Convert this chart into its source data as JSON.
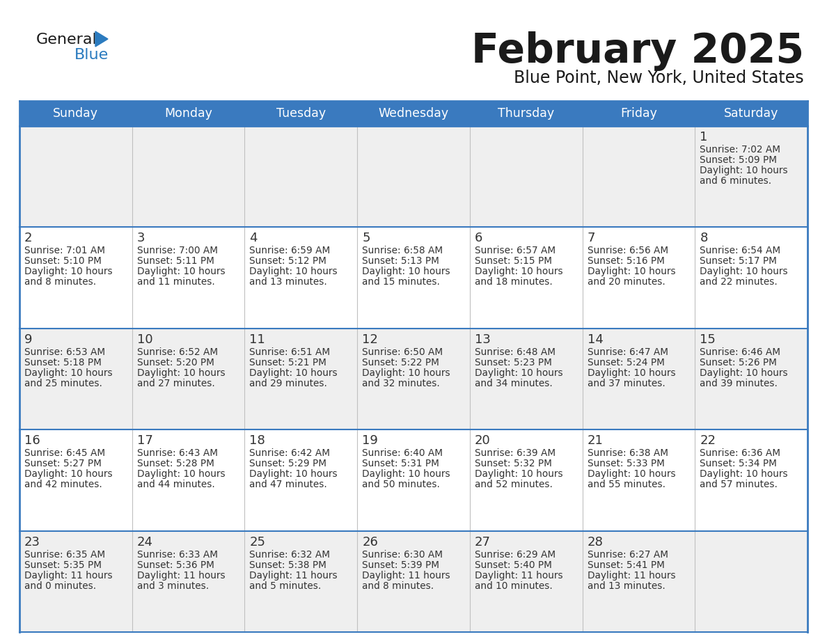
{
  "title": "February 2025",
  "subtitle": "Blue Point, New York, United States",
  "header_color": "#3a7abf",
  "header_text_color": "#ffffff",
  "row_bg_odd": "#efefef",
  "row_bg_even": "#ffffff",
  "border_color": "#3a7abf",
  "border_thin": "#c0c0c0",
  "day_names": [
    "Sunday",
    "Monday",
    "Tuesday",
    "Wednesday",
    "Thursday",
    "Friday",
    "Saturday"
  ],
  "title_color": "#1a1a1a",
  "subtitle_color": "#1a1a1a",
  "text_color": "#333333",
  "general_black": "#1a1a1a",
  "general_blue_color": "#2b7bbf",
  "days": [
    {
      "date": 1,
      "col": 6,
      "row": 0,
      "sunrise": "7:02 AM",
      "sunset": "5:09 PM",
      "daylight_h": "10 hours",
      "daylight_m": "and 6 minutes."
    },
    {
      "date": 2,
      "col": 0,
      "row": 1,
      "sunrise": "7:01 AM",
      "sunset": "5:10 PM",
      "daylight_h": "10 hours",
      "daylight_m": "and 8 minutes."
    },
    {
      "date": 3,
      "col": 1,
      "row": 1,
      "sunrise": "7:00 AM",
      "sunset": "5:11 PM",
      "daylight_h": "10 hours",
      "daylight_m": "and 11 minutes."
    },
    {
      "date": 4,
      "col": 2,
      "row": 1,
      "sunrise": "6:59 AM",
      "sunset": "5:12 PM",
      "daylight_h": "10 hours",
      "daylight_m": "and 13 minutes."
    },
    {
      "date": 5,
      "col": 3,
      "row": 1,
      "sunrise": "6:58 AM",
      "sunset": "5:13 PM",
      "daylight_h": "10 hours",
      "daylight_m": "and 15 minutes."
    },
    {
      "date": 6,
      "col": 4,
      "row": 1,
      "sunrise": "6:57 AM",
      "sunset": "5:15 PM",
      "daylight_h": "10 hours",
      "daylight_m": "and 18 minutes."
    },
    {
      "date": 7,
      "col": 5,
      "row": 1,
      "sunrise": "6:56 AM",
      "sunset": "5:16 PM",
      "daylight_h": "10 hours",
      "daylight_m": "and 20 minutes."
    },
    {
      "date": 8,
      "col": 6,
      "row": 1,
      "sunrise": "6:54 AM",
      "sunset": "5:17 PM",
      "daylight_h": "10 hours",
      "daylight_m": "and 22 minutes."
    },
    {
      "date": 9,
      "col": 0,
      "row": 2,
      "sunrise": "6:53 AM",
      "sunset": "5:18 PM",
      "daylight_h": "10 hours",
      "daylight_m": "and 25 minutes."
    },
    {
      "date": 10,
      "col": 1,
      "row": 2,
      "sunrise": "6:52 AM",
      "sunset": "5:20 PM",
      "daylight_h": "10 hours",
      "daylight_m": "and 27 minutes."
    },
    {
      "date": 11,
      "col": 2,
      "row": 2,
      "sunrise": "6:51 AM",
      "sunset": "5:21 PM",
      "daylight_h": "10 hours",
      "daylight_m": "and 29 minutes."
    },
    {
      "date": 12,
      "col": 3,
      "row": 2,
      "sunrise": "6:50 AM",
      "sunset": "5:22 PM",
      "daylight_h": "10 hours",
      "daylight_m": "and 32 minutes."
    },
    {
      "date": 13,
      "col": 4,
      "row": 2,
      "sunrise": "6:48 AM",
      "sunset": "5:23 PM",
      "daylight_h": "10 hours",
      "daylight_m": "and 34 minutes."
    },
    {
      "date": 14,
      "col": 5,
      "row": 2,
      "sunrise": "6:47 AM",
      "sunset": "5:24 PM",
      "daylight_h": "10 hours",
      "daylight_m": "and 37 minutes."
    },
    {
      "date": 15,
      "col": 6,
      "row": 2,
      "sunrise": "6:46 AM",
      "sunset": "5:26 PM",
      "daylight_h": "10 hours",
      "daylight_m": "and 39 minutes."
    },
    {
      "date": 16,
      "col": 0,
      "row": 3,
      "sunrise": "6:45 AM",
      "sunset": "5:27 PM",
      "daylight_h": "10 hours",
      "daylight_m": "and 42 minutes."
    },
    {
      "date": 17,
      "col": 1,
      "row": 3,
      "sunrise": "6:43 AM",
      "sunset": "5:28 PM",
      "daylight_h": "10 hours",
      "daylight_m": "and 44 minutes."
    },
    {
      "date": 18,
      "col": 2,
      "row": 3,
      "sunrise": "6:42 AM",
      "sunset": "5:29 PM",
      "daylight_h": "10 hours",
      "daylight_m": "and 47 minutes."
    },
    {
      "date": 19,
      "col": 3,
      "row": 3,
      "sunrise": "6:40 AM",
      "sunset": "5:31 PM",
      "daylight_h": "10 hours",
      "daylight_m": "and 50 minutes."
    },
    {
      "date": 20,
      "col": 4,
      "row": 3,
      "sunrise": "6:39 AM",
      "sunset": "5:32 PM",
      "daylight_h": "10 hours",
      "daylight_m": "and 52 minutes."
    },
    {
      "date": 21,
      "col": 5,
      "row": 3,
      "sunrise": "6:38 AM",
      "sunset": "5:33 PM",
      "daylight_h": "10 hours",
      "daylight_m": "and 55 minutes."
    },
    {
      "date": 22,
      "col": 6,
      "row": 3,
      "sunrise": "6:36 AM",
      "sunset": "5:34 PM",
      "daylight_h": "10 hours",
      "daylight_m": "and 57 minutes."
    },
    {
      "date": 23,
      "col": 0,
      "row": 4,
      "sunrise": "6:35 AM",
      "sunset": "5:35 PM",
      "daylight_h": "11 hours",
      "daylight_m": "and 0 minutes."
    },
    {
      "date": 24,
      "col": 1,
      "row": 4,
      "sunrise": "6:33 AM",
      "sunset": "5:36 PM",
      "daylight_h": "11 hours",
      "daylight_m": "and 3 minutes."
    },
    {
      "date": 25,
      "col": 2,
      "row": 4,
      "sunrise": "6:32 AM",
      "sunset": "5:38 PM",
      "daylight_h": "11 hours",
      "daylight_m": "and 5 minutes."
    },
    {
      "date": 26,
      "col": 3,
      "row": 4,
      "sunrise": "6:30 AM",
      "sunset": "5:39 PM",
      "daylight_h": "11 hours",
      "daylight_m": "and 8 minutes."
    },
    {
      "date": 27,
      "col": 4,
      "row": 4,
      "sunrise": "6:29 AM",
      "sunset": "5:40 PM",
      "daylight_h": "11 hours",
      "daylight_m": "and 10 minutes."
    },
    {
      "date": 28,
      "col": 5,
      "row": 4,
      "sunrise": "6:27 AM",
      "sunset": "5:41 PM",
      "daylight_h": "11 hours",
      "daylight_m": "and 13 minutes."
    }
  ]
}
